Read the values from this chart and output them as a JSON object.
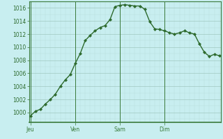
{
  "x": [
    0,
    1,
    2,
    3,
    4,
    5,
    6,
    7,
    8,
    9,
    10,
    11,
    12,
    13,
    14,
    15,
    16,
    17,
    18,
    19,
    20,
    21,
    22,
    23,
    24,
    25,
    26,
    27,
    28,
    29,
    30,
    31,
    32,
    33,
    34,
    35,
    36,
    37,
    38
  ],
  "y": [
    999.5,
    1000.2,
    1000.5,
    1001.3,
    1002.0,
    1002.8,
    1004.0,
    1005.0,
    1005.8,
    1007.5,
    1009.0,
    1011.0,
    1011.8,
    1012.5,
    1013.0,
    1013.3,
    1014.2,
    1016.2,
    1016.4,
    1016.5,
    1016.4,
    1016.3,
    1016.3,
    1015.8,
    1013.9,
    1012.8,
    1012.7,
    1012.5,
    1012.2,
    1012.0,
    1012.2,
    1012.5,
    1012.2,
    1012.0,
    1010.5,
    1009.2,
    1008.6,
    1008.9,
    1008.7
  ],
  "day_ticks": [
    0,
    9,
    18,
    27
  ],
  "day_labels": [
    "Jeu",
    "Ven",
    "Sam",
    "Dim"
  ],
  "yticks": [
    1000,
    1002,
    1004,
    1006,
    1008,
    1010,
    1012,
    1014,
    1016
  ],
  "xlim": [
    -0.3,
    38.3
  ],
  "ylim": [
    998.5,
    1017.0
  ],
  "line_color": "#2d6a2d",
  "bg_color": "#c8eef0",
  "grid_major_color": "#a0c8c0",
  "grid_minor_color": "#b8ddd8",
  "spine_color": "#3a7a3a",
  "label_color": "#2d6a2d",
  "label_fontsize": 5.5,
  "linewidth": 1.0,
  "markersize": 2.2
}
